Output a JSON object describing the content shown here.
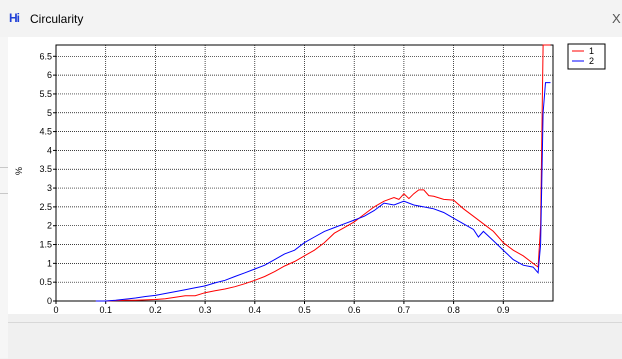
{
  "window": {
    "title": "Circularity",
    "icon": "Hi",
    "close_glyph": "X"
  },
  "chart_data": {
    "type": "line",
    "title": "",
    "xlabel": "",
    "ylabel": "%",
    "xlim": [
      0,
      1.0
    ],
    "ylim": [
      0,
      6.8
    ],
    "x_ticks": [
      0,
      0.1,
      0.2,
      0.3,
      0.4,
      0.5,
      0.6,
      0.7,
      0.8,
      0.9
    ],
    "y_ticks": [
      0,
      0.5,
      1,
      1.5,
      2,
      2.5,
      3,
      3.5,
      4,
      4.5,
      5,
      5.5,
      6,
      6.5
    ],
    "grid": true,
    "legend_position": "top-right",
    "series": [
      {
        "name": "1",
        "color": "#ff0000",
        "x": [
          0.08,
          0.1,
          0.12,
          0.14,
          0.16,
          0.18,
          0.2,
          0.22,
          0.24,
          0.26,
          0.28,
          0.3,
          0.32,
          0.34,
          0.36,
          0.38,
          0.4,
          0.42,
          0.44,
          0.46,
          0.48,
          0.5,
          0.52,
          0.54,
          0.56,
          0.58,
          0.6,
          0.62,
          0.64,
          0.66,
          0.68,
          0.69,
          0.7,
          0.71,
          0.72,
          0.73,
          0.74,
          0.75,
          0.76,
          0.78,
          0.8,
          0.82,
          0.84,
          0.86,
          0.88,
          0.9,
          0.92,
          0.94,
          0.96,
          0.97,
          0.975,
          0.98,
          0.985,
          0.99,
          0.995
        ],
        "y": [
          0,
          0,
          0.01,
          0.02,
          0.02,
          0.03,
          0.04,
          0.06,
          0.1,
          0.14,
          0.14,
          0.22,
          0.27,
          0.32,
          0.38,
          0.46,
          0.55,
          0.65,
          0.78,
          0.93,
          1.05,
          1.2,
          1.35,
          1.55,
          1.8,
          1.95,
          2.1,
          2.3,
          2.5,
          2.65,
          2.75,
          2.7,
          2.85,
          2.72,
          2.85,
          2.95,
          2.95,
          2.8,
          2.78,
          2.7,
          2.68,
          2.45,
          2.25,
          2.05,
          1.85,
          1.55,
          1.35,
          1.2,
          1.0,
          0.9,
          2.0,
          6.8,
          6.8,
          6.8,
          6.8
        ]
      },
      {
        "name": "2",
        "color": "#0000ff",
        "x": [
          0.08,
          0.1,
          0.12,
          0.14,
          0.16,
          0.18,
          0.2,
          0.22,
          0.24,
          0.26,
          0.28,
          0.3,
          0.32,
          0.34,
          0.36,
          0.38,
          0.4,
          0.42,
          0.44,
          0.46,
          0.48,
          0.5,
          0.52,
          0.54,
          0.56,
          0.58,
          0.6,
          0.62,
          0.64,
          0.66,
          0.68,
          0.7,
          0.72,
          0.74,
          0.76,
          0.78,
          0.8,
          0.82,
          0.84,
          0.85,
          0.86,
          0.88,
          0.9,
          0.92,
          0.94,
          0.96,
          0.97,
          0.975,
          0.98,
          0.985,
          0.99,
          0.995
        ],
        "y": [
          0,
          0,
          0.02,
          0.05,
          0.08,
          0.12,
          0.15,
          0.2,
          0.25,
          0.3,
          0.35,
          0.4,
          0.48,
          0.55,
          0.65,
          0.75,
          0.85,
          0.95,
          1.1,
          1.25,
          1.35,
          1.55,
          1.7,
          1.85,
          1.95,
          2.05,
          2.15,
          2.25,
          2.4,
          2.6,
          2.55,
          2.65,
          2.55,
          2.5,
          2.45,
          2.35,
          2.2,
          2.05,
          1.9,
          1.7,
          1.85,
          1.6,
          1.35,
          1.1,
          0.95,
          0.9,
          0.75,
          1.5,
          5.0,
          5.8,
          5.8,
          5.8
        ]
      }
    ]
  }
}
